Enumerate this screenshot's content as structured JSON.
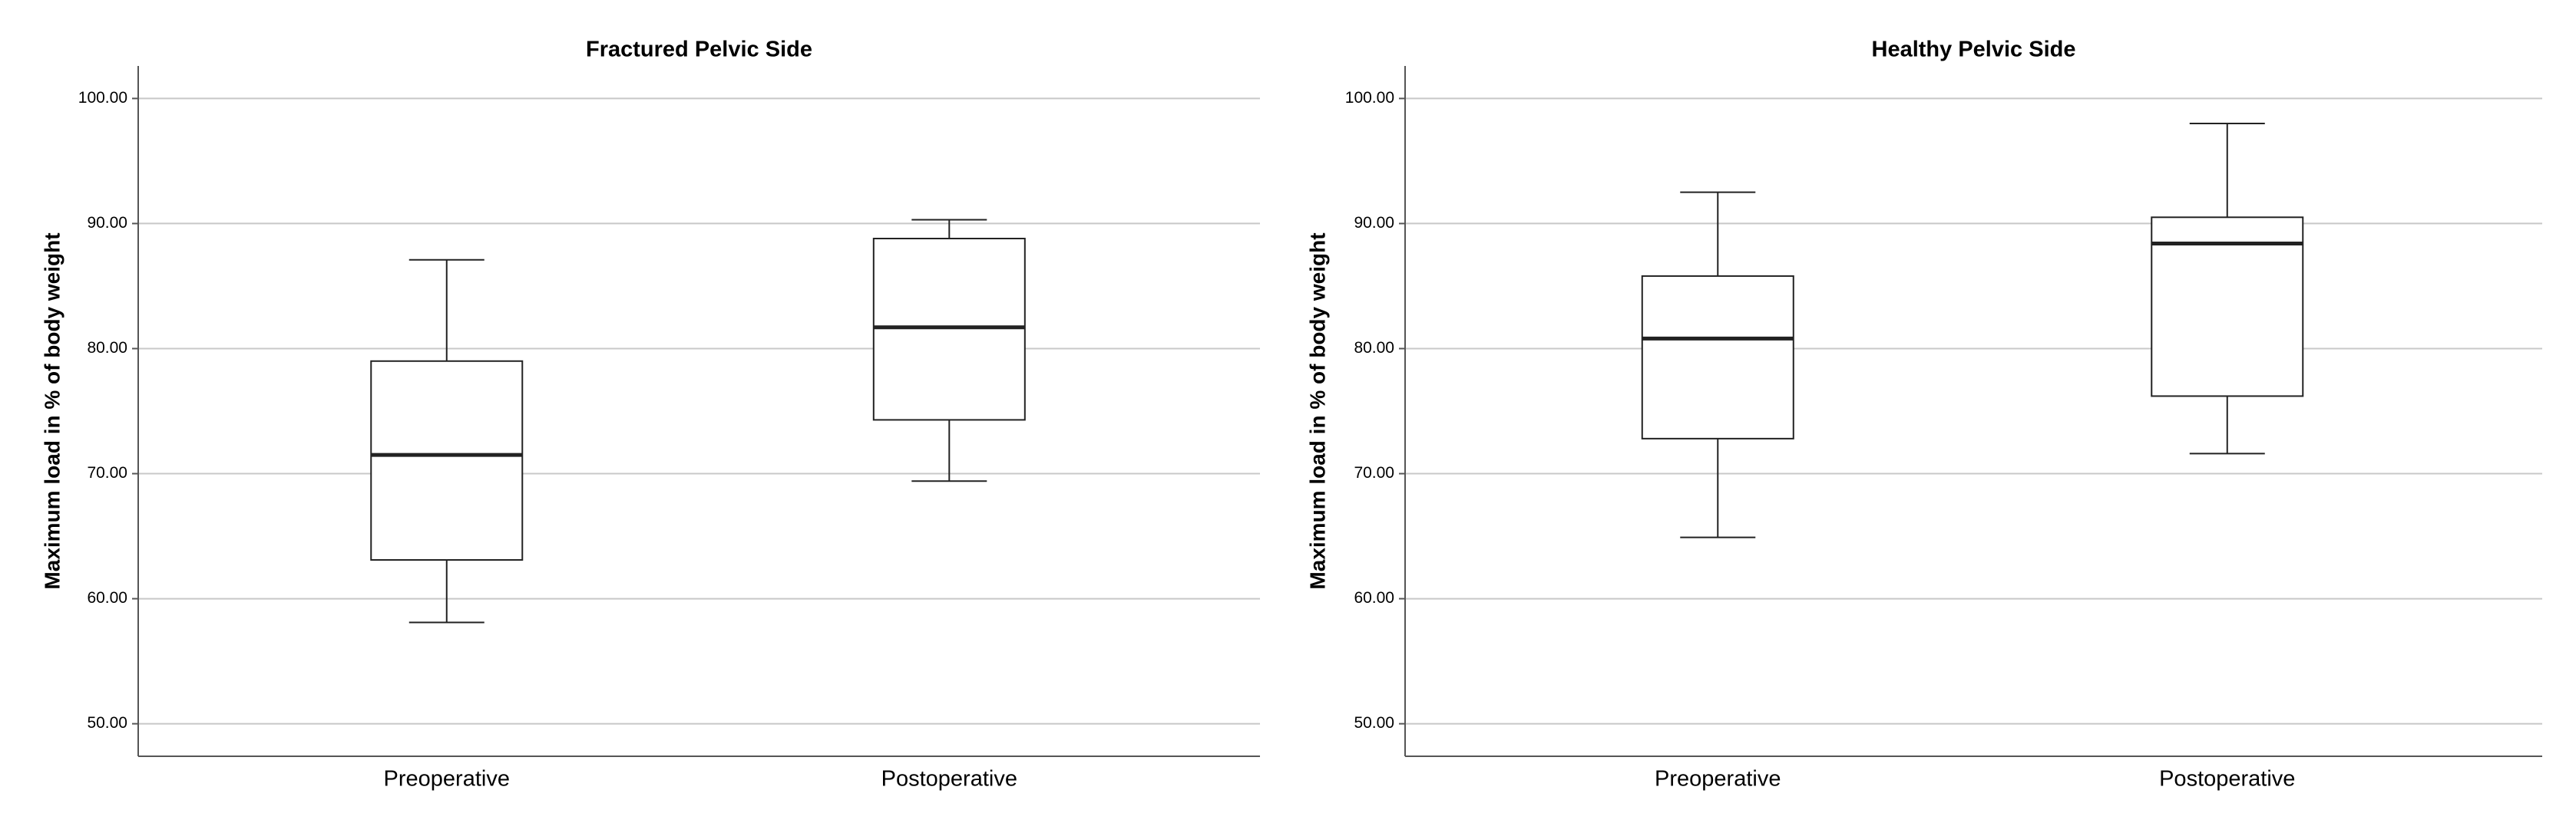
{
  "chart_data": [
    {
      "type": "box",
      "title": "Fractured Pelvic Side",
      "y_label": "Maximum load in % of body weight",
      "categories": [
        "Preoperative",
        "Postoperative"
      ],
      "boxes": [
        {
          "min": 58.1,
          "q1": 63.1,
          "median": 71.5,
          "q3": 79.0,
          "max": 87.1
        },
        {
          "min": 69.4,
          "q1": 74.3,
          "median": 81.7,
          "q3": 88.8,
          "max": 90.3
        }
      ],
      "ylim": [
        47.4,
        102.6
      ],
      "yticks": [
        {
          "value": 50,
          "label": "50.00"
        },
        {
          "value": 60,
          "label": "60.00"
        },
        {
          "value": 70,
          "label": "70.00"
        },
        {
          "value": 80,
          "label": "80.00"
        },
        {
          "value": 90,
          "label": "90.00"
        },
        {
          "value": 100,
          "label": "100.00"
        }
      ],
      "grid": true,
      "color": "#ffffff"
    },
    {
      "type": "box",
      "title": "Healthy Pelvic Side",
      "y_label": "Maximum load in % of body weight",
      "categories": [
        "Preoperative",
        "Postoperative"
      ],
      "boxes": [
        {
          "min": 64.9,
          "q1": 72.8,
          "median": 80.8,
          "q3": 85.8,
          "max": 92.5
        },
        {
          "min": 71.6,
          "q1": 76.2,
          "median": 88.4,
          "q3": 90.5,
          "max": 98.0
        }
      ],
      "ylim": [
        47.4,
        102.6
      ],
      "yticks": [
        {
          "value": 50,
          "label": "50.00"
        },
        {
          "value": 60,
          "label": "60.00"
        },
        {
          "value": 70,
          "label": "70.00"
        },
        {
          "value": 80,
          "label": "80.00"
        },
        {
          "value": 90,
          "label": "90.00"
        },
        {
          "value": 100,
          "label": "100.00"
        }
      ],
      "grid": true,
      "color": "#ffffff"
    }
  ]
}
